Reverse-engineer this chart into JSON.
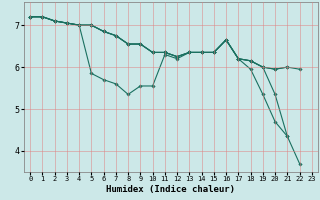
{
  "xlabel": "Humidex (Indice chaleur)",
  "bg_color": "#cce8e8",
  "grid_color": "#e08080",
  "line_color": "#1a7060",
  "xlim": [
    -0.5,
    23.5
  ],
  "ylim": [
    3.5,
    7.55
  ],
  "yticks": [
    4,
    5,
    6,
    7
  ],
  "xticks": [
    0,
    1,
    2,
    3,
    4,
    5,
    6,
    7,
    8,
    9,
    10,
    11,
    12,
    13,
    14,
    15,
    16,
    17,
    18,
    19,
    20,
    21,
    22,
    23
  ],
  "lines": [
    {
      "x": [
        0,
        1,
        2,
        3,
        4,
        5,
        6,
        7,
        8,
        9,
        10,
        11,
        12,
        13,
        14,
        15,
        16,
        17,
        18,
        19,
        20,
        21,
        22
      ],
      "y": [
        7.2,
        7.2,
        7.1,
        7.05,
        7.0,
        5.85,
        5.7,
        5.6,
        5.35,
        5.55,
        5.55,
        6.3,
        6.2,
        6.35,
        6.35,
        6.35,
        6.65,
        6.2,
        5.95,
        5.35,
        4.7,
        4.35,
        3.7
      ]
    },
    {
      "x": [
        0,
        1,
        2,
        3,
        4,
        5,
        6,
        7,
        8,
        9,
        10,
        11,
        12,
        13,
        14,
        15,
        16,
        17,
        18,
        19,
        20,
        21,
        22
      ],
      "y": [
        7.2,
        7.2,
        7.1,
        7.05,
        7.0,
        7.0,
        6.85,
        6.75,
        6.55,
        6.55,
        6.35,
        6.35,
        6.25,
        6.35,
        6.35,
        6.35,
        6.65,
        6.2,
        6.15,
        6.0,
        5.95,
        6.0,
        5.95
      ]
    },
    {
      "x": [
        0,
        1,
        2,
        3,
        4,
        5,
        6,
        7,
        8,
        9,
        10,
        11,
        12,
        13,
        14,
        15,
        16,
        17,
        18,
        19,
        20,
        21
      ],
      "y": [
        7.2,
        7.2,
        7.1,
        7.05,
        7.0,
        7.0,
        6.85,
        6.75,
        6.55,
        6.55,
        6.35,
        6.35,
        6.25,
        6.35,
        6.35,
        6.35,
        6.65,
        6.2,
        6.15,
        6.0,
        5.35,
        4.35
      ]
    },
    {
      "x": [
        0,
        1,
        2,
        3,
        4,
        5,
        6,
        7,
        8,
        9,
        10,
        11,
        12,
        13,
        14,
        15,
        16,
        17,
        18,
        19,
        20,
        21
      ],
      "y": [
        7.2,
        7.2,
        7.1,
        7.05,
        7.0,
        7.0,
        6.85,
        6.75,
        6.55,
        6.55,
        6.35,
        6.35,
        6.25,
        6.35,
        6.35,
        6.35,
        6.65,
        6.2,
        6.15,
        6.0,
        5.95,
        6.0
      ]
    }
  ]
}
